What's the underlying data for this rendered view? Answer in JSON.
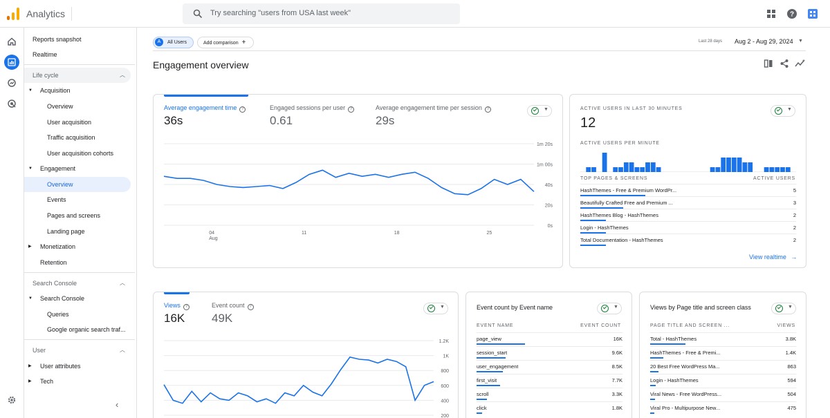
{
  "app": {
    "title": "Analytics",
    "search_placeholder": "Try searching \"users from USA last week\"",
    "colors": {
      "accent": "#1a73e8",
      "logo_orange": "#f9ab00",
      "logo_dark": "#e37400"
    },
    "top_icons": [
      "apps-grid-icon",
      "help-icon",
      "account-icon"
    ]
  },
  "rail": {
    "items": [
      "home-icon",
      "reports-icon",
      "explore-icon",
      "advertising-icon",
      "settings-icon"
    ],
    "active": "reports-icon"
  },
  "nav": {
    "items": [
      {
        "label": "Reports snapshot",
        "kind": "top"
      },
      {
        "label": "Realtime",
        "kind": "top"
      },
      {
        "label": "Life cycle",
        "kind": "section",
        "expanded": true
      },
      {
        "label": "Acquisition",
        "kind": "group",
        "expanded": true
      },
      {
        "label": "Overview",
        "kind": "child"
      },
      {
        "label": "User acquisition",
        "kind": "child"
      },
      {
        "label": "Traffic acquisition",
        "kind": "child"
      },
      {
        "label": "User acquisition cohorts",
        "kind": "child"
      },
      {
        "label": "Engagement",
        "kind": "group",
        "expanded": true
      },
      {
        "label": "Overview",
        "kind": "child",
        "selected": true
      },
      {
        "label": "Events",
        "kind": "child"
      },
      {
        "label": "Pages and screens",
        "kind": "child"
      },
      {
        "label": "Landing page",
        "kind": "child"
      },
      {
        "label": "Monetization",
        "kind": "group",
        "expanded": false
      },
      {
        "label": "Retention",
        "kind": "group-leaf"
      },
      {
        "label": "Search Console",
        "kind": "section",
        "expanded": true
      },
      {
        "label": "Search Console",
        "kind": "group",
        "expanded": true
      },
      {
        "label": "Queries",
        "kind": "child"
      },
      {
        "label": "Google organic search traf...",
        "kind": "child"
      },
      {
        "label": "User",
        "kind": "section",
        "expanded": true
      },
      {
        "label": "User attributes",
        "kind": "group",
        "expanded": false
      },
      {
        "label": "Tech",
        "kind": "group",
        "expanded": false
      }
    ]
  },
  "toolbar": {
    "segment_badge": "A",
    "segment_label": "All Users",
    "add_comparison": "Add comparison",
    "add_icon": "+",
    "date_label": "Last 28 days",
    "date_range": "Aug 2 - Aug 29, 2024",
    "page_title": "Engagement overview",
    "actions": [
      "compare-view-icon",
      "share-icon",
      "insights-icon"
    ]
  },
  "engagement_card": {
    "metrics": [
      {
        "label": "Average engagement time",
        "value": "36s",
        "active": true
      },
      {
        "label": "Engaged sessions per user",
        "value": "0.61",
        "active": false
      },
      {
        "label": "Average engagement time per session",
        "value": "29s",
        "active": false
      }
    ],
    "chart_data": {
      "type": "line",
      "y_ticks": [
        "1m 20s",
        "1m 00s",
        "40s",
        "20s",
        "0s"
      ],
      "y_tick_values": [
        80,
        60,
        40,
        20,
        0
      ],
      "ylim": [
        0,
        80
      ],
      "x_ticks": [
        {
          "label": "04",
          "sub": "Aug",
          "index": 2
        },
        {
          "label": "11",
          "sub": "",
          "index": 9
        },
        {
          "label": "18",
          "sub": "",
          "index": 16
        },
        {
          "label": "25",
          "sub": "",
          "index": 23
        }
      ],
      "series": [
        {
          "values": [
            48,
            46,
            46,
            44,
            40,
            38,
            37,
            38,
            39,
            36,
            42,
            50,
            54,
            47,
            51,
            48,
            50,
            47,
            50,
            52,
            46,
            37,
            31,
            30,
            36,
            45,
            40,
            45,
            33
          ],
          "color": "#1a73e8"
        }
      ]
    }
  },
  "realtime_card": {
    "title": "ACTIVE USERS IN LAST 30 MINUTES",
    "value": "12",
    "per_minute_label": "ACTIVE USERS PER MINUTE",
    "chart_data": {
      "type": "bar",
      "values": [
        0,
        1,
        1,
        0,
        4,
        0,
        1,
        1,
        2,
        2,
        1,
        1,
        2,
        2,
        1,
        0,
        0,
        0,
        0,
        0,
        0,
        0,
        0,
        0,
        1,
        1,
        3,
        3,
        3,
        3,
        2,
        2,
        0,
        0,
        1,
        1,
        1,
        1,
        1,
        0
      ],
      "color": "#1a73e8"
    },
    "table_header": {
      "left": "TOP PAGES & SCREENS",
      "right": "ACTIVE USERS"
    },
    "rows": [
      {
        "label": "HashThemes - Free & Premium WordPr...",
        "value": "5",
        "share": 0.3
      },
      {
        "label": "Beautifully Crafted Free and Premium ...",
        "value": "3",
        "share": 0.2
      },
      {
        "label": "HashThemes Blog - HashThemes",
        "value": "2",
        "share": 0.12
      },
      {
        "label": "Login - HashThemes",
        "value": "2",
        "share": 0.12
      },
      {
        "label": "Total Documentation - HashThemes",
        "value": "2",
        "share": 0.12
      }
    ],
    "link": "View realtime",
    "link_icon": "arrow-right-icon"
  },
  "views_card": {
    "metrics": [
      {
        "label": "Views",
        "value": "16K",
        "active": true
      },
      {
        "label": "Event count",
        "value": "49K",
        "active": false
      }
    ],
    "chart_data": {
      "type": "line",
      "y_ticks": [
        "1.2K",
        "1K",
        "800",
        "600",
        "400",
        "200"
      ],
      "y_tick_values": [
        1200,
        1000,
        800,
        600,
        400,
        200
      ],
      "ylim": [
        200,
        1200
      ],
      "series": [
        {
          "values": [
            610,
            400,
            360,
            520,
            380,
            500,
            420,
            400,
            500,
            460,
            380,
            420,
            360,
            500,
            460,
            600,
            510,
            460,
            620,
            810,
            980,
            950,
            940,
            900,
            950,
            920,
            850,
            400,
            600,
            650
          ],
          "color": "#1a73e8"
        }
      ]
    }
  },
  "event_card": {
    "title": "Event count by Event name",
    "header": {
      "left": "EVENT NAME",
      "right": "EVENT COUNT"
    },
    "rows": [
      {
        "label": "page_view",
        "value": "16K",
        "share": 0.33
      },
      {
        "label": "session_start",
        "value": "9.6K",
        "share": 0.2
      },
      {
        "label": "user_engagement",
        "value": "8.5K",
        "share": 0.18
      },
      {
        "label": "first_visit",
        "value": "7.7K",
        "share": 0.16
      },
      {
        "label": "scroll",
        "value": "3.3K",
        "share": 0.07
      },
      {
        "label": "click",
        "value": "1.8K",
        "share": 0.04
      }
    ]
  },
  "pages_card": {
    "title": "Views by Page title and screen class",
    "header": {
      "left": "PAGE TITLE AND SCREEN ...",
      "right": "VIEWS"
    },
    "rows": [
      {
        "label": "Total - HashThemes",
        "value": "3.8K",
        "share": 0.24
      },
      {
        "label": "HashThemes - Free & Premi...",
        "value": "1.4K",
        "share": 0.09
      },
      {
        "label": "20 Best Free WordPress Ma...",
        "value": "863",
        "share": 0.055
      },
      {
        "label": "Login - HashThemes",
        "value": "594",
        "share": 0.04
      },
      {
        "label": "Viral News - Free WordPress...",
        "value": "504",
        "share": 0.032
      },
      {
        "label": "Viral Pro - Multipurpose New...",
        "value": "475",
        "share": 0.03
      }
    ]
  }
}
